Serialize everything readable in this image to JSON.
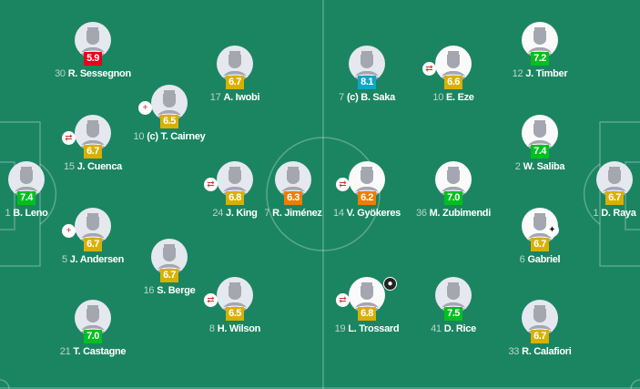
{
  "colors": {
    "pitch": "#1b8562",
    "rating_yellow": "#d9b000",
    "rating_green": "#00c020",
    "rating_red": "#e8001c",
    "rating_orange": "#f07d00",
    "rating_blue": "#10a6c8"
  },
  "home": [
    {
      "num": "30",
      "name": "R. Sessegnon",
      "rating": "5.9",
      "color": "red",
      "icon": null
    },
    {
      "num": "17",
      "name": "A. Iwobi",
      "rating": "6.7",
      "color": "yellow",
      "icon": null
    },
    {
      "num": "10",
      "name": "(c) T. Cairney",
      "rating": "6.5",
      "color": "yellow",
      "icon": "injury-substitution-icon"
    },
    {
      "num": "15",
      "name": "J. Cuenca",
      "rating": "6.7",
      "color": "yellow",
      "icon": "substitution-icon"
    },
    {
      "num": "1",
      "name": "B. Leno",
      "rating": "7.4",
      "color": "green",
      "icon": null
    },
    {
      "num": "24",
      "name": "J. King",
      "rating": "6.8",
      "color": "yellow",
      "icon": "substitution-icon"
    },
    {
      "num": "7",
      "name": "R. Jiménez",
      "rating": "6.3",
      "color": "orange",
      "icon": null
    },
    {
      "num": "5",
      "name": "J. Andersen",
      "rating": "6.7",
      "color": "yellow",
      "icon": "injury-substitution-icon"
    },
    {
      "num": "16",
      "name": "S. Berge",
      "rating": "6.7",
      "color": "yellow",
      "icon": null
    },
    {
      "num": "8",
      "name": "H. Wilson",
      "rating": "6.5",
      "color": "yellow",
      "icon": "substitution-icon"
    },
    {
      "num": "21",
      "name": "T. Castagne",
      "rating": "7.0",
      "color": "green",
      "icon": null
    }
  ],
  "away": [
    {
      "num": "7",
      "name": "(c) B. Saka",
      "rating": "8.1",
      "color": "blue",
      "icon": null,
      "photo": false
    },
    {
      "num": "10",
      "name": "E. Eze",
      "rating": "6.6",
      "color": "yellow",
      "icon": "substitution-icon",
      "photo": true
    },
    {
      "num": "12",
      "name": "J. Timber",
      "rating": "7.2",
      "color": "green",
      "icon": null,
      "photo": true
    },
    {
      "num": "2",
      "name": "W. Saliba",
      "rating": "7.4",
      "color": "green",
      "icon": null,
      "photo": true
    },
    {
      "num": "14",
      "name": "V. Gyökeres",
      "rating": "6.2",
      "color": "orange",
      "icon": "substitution-icon",
      "photo": true
    },
    {
      "num": "36",
      "name": "M. Zubimendi",
      "rating": "7.0",
      "color": "green",
      "icon": null,
      "photo": true
    },
    {
      "num": "1",
      "name": "D. Raya",
      "rating": "6.7",
      "color": "yellow",
      "icon": null,
      "photo": false
    },
    {
      "num": "6",
      "name": "Gabriel",
      "rating": "6.7",
      "color": "yellow",
      "icon": "player-event-icon",
      "photo": true
    },
    {
      "num": "19",
      "name": "L. Trossard",
      "rating": "6.8",
      "color": "yellow",
      "icon": "substitution-icon",
      "goal": "goal-icon",
      "photo": true
    },
    {
      "num": "41",
      "name": "D. Rice",
      "rating": "7.5",
      "color": "green",
      "icon": null,
      "photo": false
    },
    {
      "num": "33",
      "name": "R. Calafiori",
      "rating": "6.7",
      "color": "yellow",
      "icon": null,
      "photo": false
    }
  ]
}
